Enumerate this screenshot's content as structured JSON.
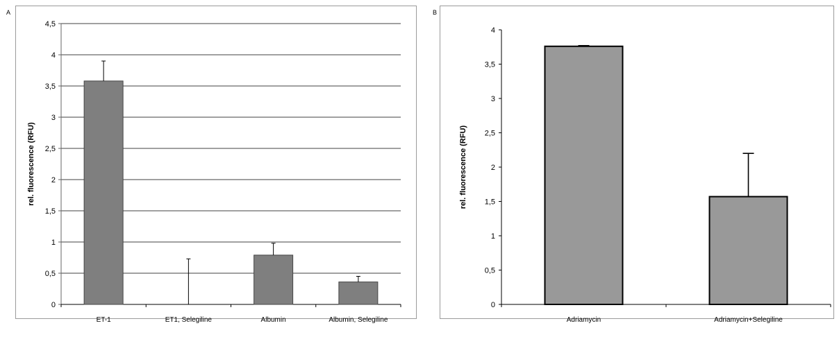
{
  "chart_data": [
    {
      "panel": "A",
      "type": "bar",
      "ylabel": "rel. fluorescence (RFU)",
      "xlabel": "",
      "ylim": [
        0,
        4.5
      ],
      "yticks": [
        "0",
        "0,5",
        "1",
        "1,5",
        "2",
        "2,5",
        "3",
        "3,5",
        "4",
        "4,5"
      ],
      "grid": true,
      "categories": [
        "ET-1",
        "ET1, Selegiline",
        "Albumin",
        "Albumin, Selegiline"
      ],
      "values": [
        3.58,
        0,
        0.79,
        0.36
      ],
      "errors": [
        0.32,
        0.73,
        0.19,
        0.09
      ],
      "bar_color": "#7f7f7f"
    },
    {
      "panel": "B",
      "type": "bar",
      "ylabel": "rel. fluorescence (RFU)",
      "xlabel": "",
      "ylim": [
        0,
        4
      ],
      "yticks": [
        "0",
        "0,5",
        "1",
        "1,5",
        "2",
        "2,5",
        "3",
        "3,5",
        "4"
      ],
      "grid": false,
      "categories": [
        "Adriamycin",
        "Adriamycin+Selegiline"
      ],
      "values": [
        3.76,
        1.57
      ],
      "errors": [
        0.01,
        0.63
      ],
      "bar_color": "#999999"
    }
  ]
}
